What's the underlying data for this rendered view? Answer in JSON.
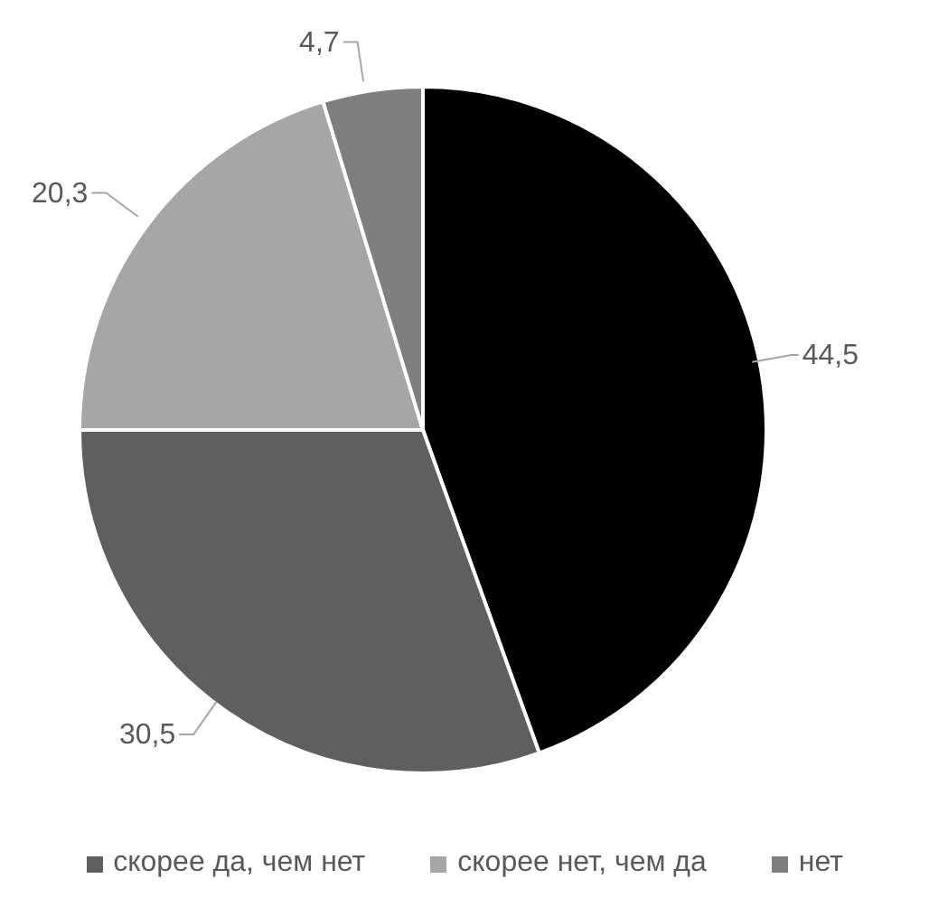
{
  "chart_data": {
    "type": "pie",
    "categories": [
      null,
      "скорее да, чем нет",
      "скорее нет, чем да",
      "нет"
    ],
    "values": [
      44.5,
      30.5,
      20.3,
      4.7
    ],
    "value_labels": [
      "44,5",
      "30,5",
      "20,3",
      "4,7"
    ],
    "colors": [
      "#000000",
      "#5f5f5f",
      "#a6a6a6",
      "#7f7f7f"
    ],
    "legend": "bottom"
  }
}
